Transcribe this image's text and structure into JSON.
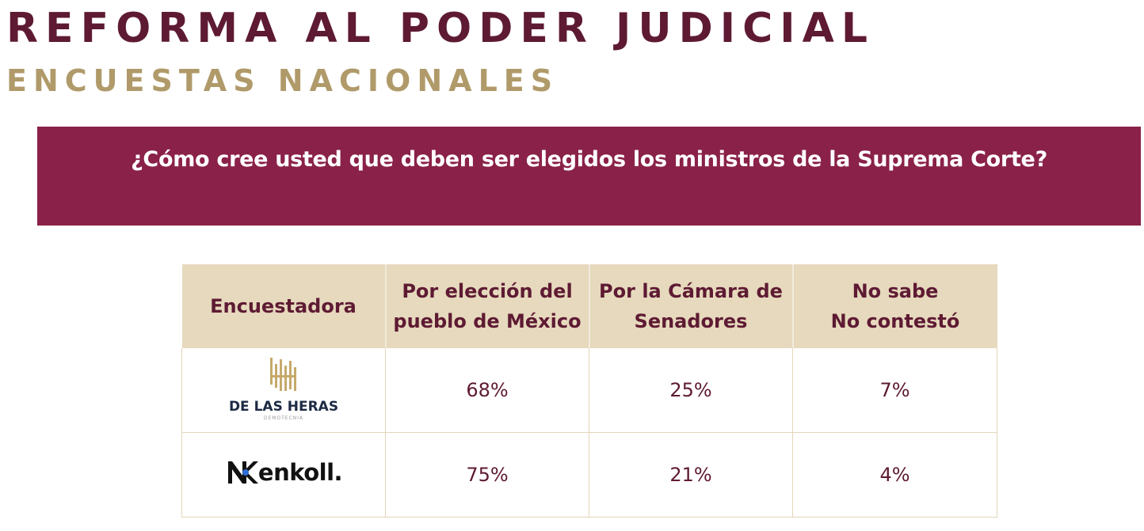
{
  "header": {
    "title": "REFORMA AL PODER JUDICIAL",
    "subtitle": "ENCUESTAS NACIONALES"
  },
  "question": "¿Cómo cree usted que deben ser elegidos los ministros de la Suprema Corte?",
  "table": {
    "columns": [
      {
        "lines": [
          "Encuestadora"
        ]
      },
      {
        "lines": [
          "Por elección del",
          "pueblo de México"
        ]
      },
      {
        "lines": [
          "Por la Cámara de",
          "Senadores"
        ]
      },
      {
        "lines": [
          "No sabe",
          "No contestó"
        ]
      }
    ],
    "rows": [
      {
        "pollster": "DE LAS HERAS",
        "pollster_sub": "DEMOTECNIA",
        "logo_icon": "de-las-heras-logo-icon",
        "eleccion_pueblo": "68%",
        "camara_senadores": "25%",
        "no_sabe": "7%"
      },
      {
        "pollster": "enkoll.",
        "logo_icon": "enkoll-logo-icon",
        "eleccion_pueblo": "75%",
        "camara_senadores": "21%",
        "no_sabe": "4%"
      }
    ]
  },
  "colors": {
    "title": "#5e1a33",
    "subtitle": "#b09a6a",
    "banner": "#8a2149",
    "table_header": "#e6d9bd",
    "cell_text": "#5e1a33"
  }
}
